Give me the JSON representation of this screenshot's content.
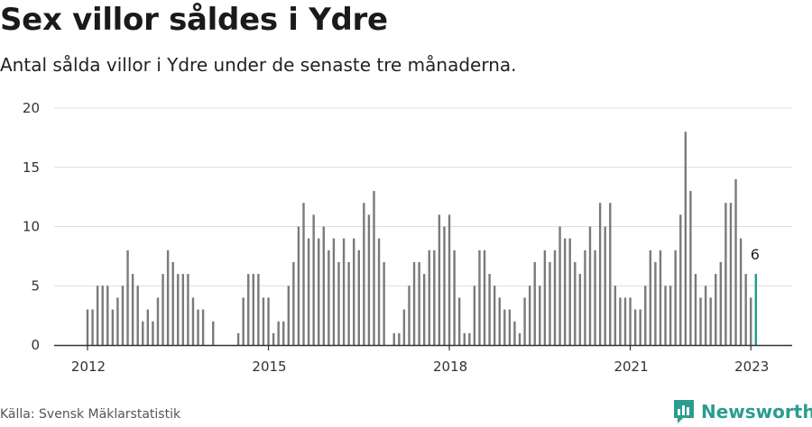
{
  "title": "Sex villor såldes i Ydre",
  "subtitle": "Antal sålda villor i Ydre under de senaste tre månaderna.",
  "source": "Källa: Svensk Mäklarstatistik",
  "brand": "Newsworthy",
  "colors": {
    "bar": "#7a7a7a",
    "highlight": "#1a9e8f",
    "grid": "#dddddd",
    "axis": "#333333",
    "brand": "#2a9d8f"
  },
  "chart_data": {
    "type": "bar",
    "start": "2012-01",
    "x_tick_labels": [
      "2012",
      "2015",
      "2018",
      "2021",
      "2023"
    ],
    "y_tick_labels": [
      "0",
      "5",
      "10",
      "15",
      "20"
    ],
    "ylim": [
      0,
      20
    ],
    "grid": true,
    "values": [
      3,
      3,
      5,
      5,
      5,
      3,
      4,
      5,
      8,
      6,
      5,
      2,
      3,
      2,
      4,
      6,
      8,
      7,
      6,
      6,
      6,
      4,
      3,
      3,
      null,
      2,
      null,
      null,
      null,
      null,
      1,
      4,
      6,
      6,
      6,
      4,
      4,
      1,
      2,
      2,
      5,
      7,
      10,
      12,
      9,
      11,
      9,
      10,
      8,
      9,
      7,
      9,
      7,
      9,
      8,
      12,
      11,
      13,
      9,
      7,
      null,
      1,
      1,
      3,
      5,
      7,
      7,
      6,
      8,
      8,
      11,
      10,
      11,
      8,
      4,
      1,
      1,
      5,
      8,
      8,
      6,
      5,
      4,
      3,
      3,
      2,
      1,
      4,
      5,
      7,
      5,
      8,
      7,
      8,
      10,
      9,
      9,
      7,
      6,
      8,
      10,
      8,
      12,
      10,
      12,
      5,
      4,
      4,
      4,
      3,
      3,
      5,
      8,
      7,
      8,
      5,
      5,
      8,
      11,
      18,
      13,
      6,
      4,
      5,
      4,
      6,
      7,
      12,
      12,
      14,
      9,
      6,
      4,
      6
    ],
    "highlight_label": "6"
  }
}
